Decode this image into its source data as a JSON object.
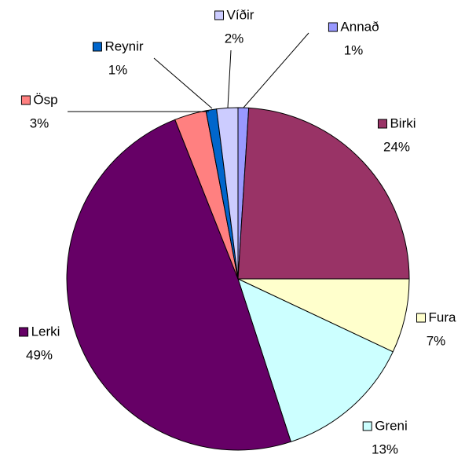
{
  "chart_data": {
    "type": "pie",
    "categories": [
      "Annað",
      "Birki",
      "Fura",
      "Greni",
      "Lerki",
      "Ösp",
      "Reynir",
      "Víðir"
    ],
    "values": [
      1,
      24,
      7,
      13,
      49,
      3,
      1,
      2
    ],
    "value_labels": [
      "1%",
      "24%",
      "7%",
      "13%",
      "49%",
      "3%",
      "1%",
      "2%"
    ],
    "colors": [
      "#9999ff",
      "#993366",
      "#ffffcc",
      "#ccffff",
      "#660066",
      "#ff8080",
      "#0066cc",
      "#ccccff"
    ]
  }
}
